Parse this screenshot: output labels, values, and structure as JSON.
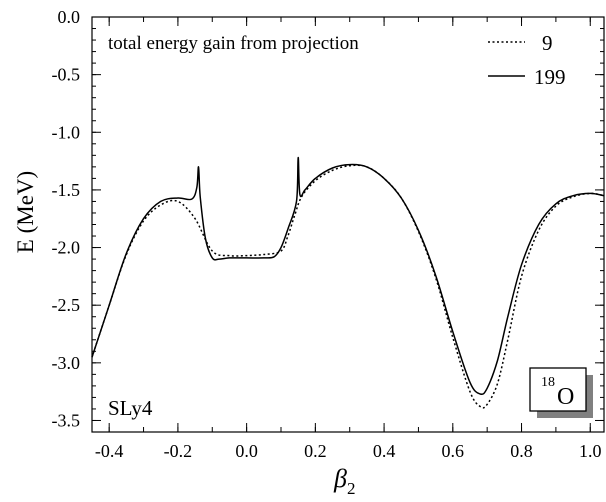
{
  "chart_data": {
    "type": "line",
    "title": "",
    "xlabel": "β",
    "xlabel_sub": "2",
    "ylabel": "E (MeV)",
    "xlim": [
      -0.45,
      1.04
    ],
    "ylim": [
      -3.6,
      0.0
    ],
    "x_ticks": [
      -0.4,
      -0.2,
      0.0,
      0.2,
      0.4,
      0.6,
      0.8,
      1.0
    ],
    "x_tick_labels": [
      "-0.4",
      "-0.2",
      "0.0",
      "0.2",
      "0.4",
      "0.6",
      "0.8",
      "1.0"
    ],
    "y_ticks": [
      0.0,
      -0.5,
      -1.0,
      -1.5,
      -2.0,
      -2.5,
      -3.0,
      -3.5
    ],
    "y_tick_labels": [
      "0.0",
      "-0.5",
      "-1.0",
      "-1.5",
      "-2.0",
      "-2.5",
      "-3.0",
      "-3.5"
    ],
    "grid": false,
    "legend_position": "top-right",
    "annotations": {
      "top_left": "total energy gain from projection",
      "bottom_left": "SLy4",
      "nucleus_mass": "18",
      "nucleus_symbol": "O"
    },
    "series": [
      {
        "name": "9",
        "style": "dotted",
        "color": "#000000",
        "x": [
          -0.45,
          -0.4,
          -0.35,
          -0.3,
          -0.25,
          -0.2,
          -0.15,
          -0.1,
          -0.05,
          0.0,
          0.05,
          0.1,
          0.12,
          0.14,
          0.16,
          0.2,
          0.25,
          0.3,
          0.35,
          0.4,
          0.45,
          0.5,
          0.55,
          0.6,
          0.65,
          0.68,
          0.7,
          0.73,
          0.76,
          0.8,
          0.85,
          0.9,
          0.95,
          1.0,
          1.04
        ],
        "y": [
          -2.95,
          -2.5,
          -2.06,
          -1.77,
          -1.63,
          -1.6,
          -1.75,
          -2.03,
          -2.07,
          -2.07,
          -2.06,
          -2.03,
          -1.9,
          -1.72,
          -1.56,
          -1.42,
          -1.33,
          -1.29,
          -1.3,
          -1.4,
          -1.57,
          -1.86,
          -2.26,
          -2.78,
          -3.25,
          -3.38,
          -3.36,
          -3.18,
          -2.8,
          -2.25,
          -1.85,
          -1.64,
          -1.56,
          -1.53,
          -1.55
        ]
      },
      {
        "name": "199",
        "style": "solid",
        "color": "#000000",
        "x": [
          -0.45,
          -0.4,
          -0.35,
          -0.3,
          -0.25,
          -0.2,
          -0.16,
          -0.145,
          -0.14,
          -0.135,
          -0.12,
          -0.1,
          -0.08,
          -0.05,
          0.0,
          0.05,
          0.08,
          0.1,
          0.12,
          0.145,
          0.15,
          0.155,
          0.17,
          0.2,
          0.25,
          0.3,
          0.35,
          0.4,
          0.45,
          0.5,
          0.55,
          0.6,
          0.65,
          0.68,
          0.7,
          0.73,
          0.76,
          0.8,
          0.85,
          0.9,
          0.95,
          1.0,
          1.04
        ],
        "y": [
          -2.95,
          -2.5,
          -2.05,
          -1.75,
          -1.6,
          -1.57,
          -1.58,
          -1.48,
          -1.3,
          -1.56,
          -1.92,
          -2.09,
          -2.1,
          -2.09,
          -2.09,
          -2.09,
          -2.08,
          -2.0,
          -1.84,
          -1.6,
          -1.22,
          -1.54,
          -1.5,
          -1.4,
          -1.31,
          -1.28,
          -1.3,
          -1.4,
          -1.57,
          -1.85,
          -2.24,
          -2.73,
          -3.17,
          -3.27,
          -3.22,
          -2.98,
          -2.6,
          -2.15,
          -1.8,
          -1.62,
          -1.55,
          -1.53,
          -1.55
        ]
      }
    ]
  }
}
